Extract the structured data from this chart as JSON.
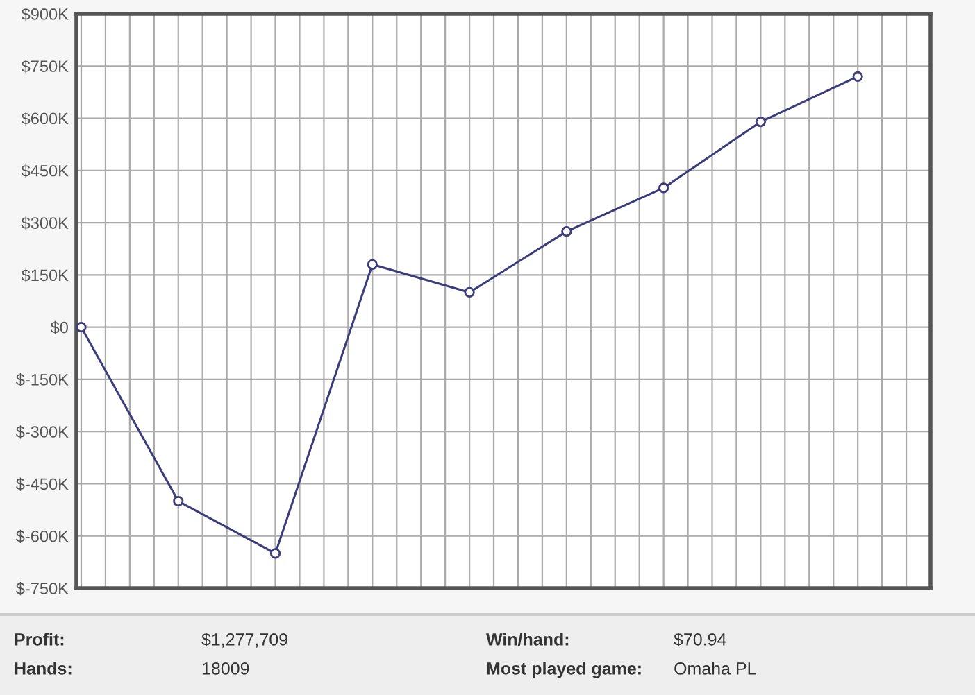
{
  "chart_data": {
    "type": "line",
    "categories": [
      null,
      null,
      null,
      null,
      null,
      null,
      null,
      null,
      null
    ],
    "series": [
      {
        "color": "#3c3c7c",
        "values": [
          0,
          -500000,
          -650000,
          180000,
          100000,
          275000,
          400000,
          590000,
          720000
        ]
      }
    ],
    "ylim": [
      -750000,
      900000
    ],
    "yticks": [
      {
        "value": -750000,
        "label": "$-750K"
      },
      {
        "value": -600000,
        "label": "$-600K"
      },
      {
        "value": -450000,
        "label": "$-450K"
      },
      {
        "value": -300000,
        "label": "$-300K"
      },
      {
        "value": -150000,
        "label": "$-150K"
      },
      {
        "value": 0,
        "label": "$0"
      },
      {
        "value": 150000,
        "label": "$150K"
      },
      {
        "value": 300000,
        "label": "$300K"
      },
      {
        "value": 450000,
        "label": "$450K"
      },
      {
        "value": 600000,
        "label": "$600K"
      },
      {
        "value": 750000,
        "label": "$750K"
      },
      {
        "value": 900000,
        "label": "$900K"
      }
    ],
    "grid": true,
    "marker": "circle",
    "line_style": "solid",
    "legend": false,
    "annotations": [
      "Profit:",
      "$1,277,709",
      "Win/hand:",
      "$70.94",
      "Hands:",
      "18009",
      "Most played game:",
      "Omaha PL"
    ]
  }
}
